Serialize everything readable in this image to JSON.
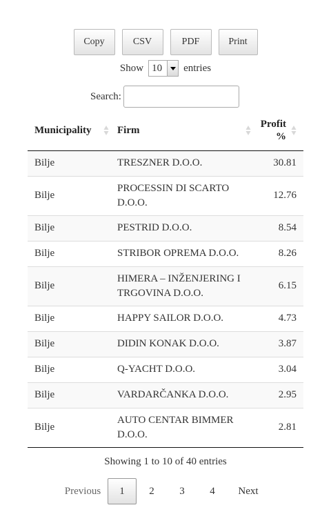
{
  "buttons": {
    "copy": "Copy",
    "csv": "CSV",
    "pdf": "PDF",
    "print": "Print"
  },
  "length": {
    "show_label": "Show",
    "selected": "10",
    "entries_label": "entries"
  },
  "search": {
    "label": "Search:",
    "value": ""
  },
  "table": {
    "headers": [
      "Municipality",
      "Firm",
      "Profit %"
    ],
    "rows": [
      {
        "municipality": "Bilje",
        "firm": "TRESZNER D.O.O.",
        "profit": "30.81"
      },
      {
        "municipality": "Bilje",
        "firm": "PROCESSIN DI SCARTO D.O.O.",
        "profit": "12.76"
      },
      {
        "municipality": "Bilje",
        "firm": "PESTRID D.O.O.",
        "profit": "8.54"
      },
      {
        "municipality": "Bilje",
        "firm": "STRIBOR OPREMA D.O.O.",
        "profit": "8.26"
      },
      {
        "municipality": "Bilje",
        "firm": "HIMERA – INŽENJERING I TRGOVINA D.O.O.",
        "profit": "6.15"
      },
      {
        "municipality": "Bilje",
        "firm": "HAPPY SAILOR D.O.O.",
        "profit": "4.73"
      },
      {
        "municipality": "Bilje",
        "firm": "DIDIN KONAK D.O.O.",
        "profit": "3.87"
      },
      {
        "municipality": "Bilje",
        "firm": "Q-YACHT D.O.O.",
        "profit": "3.04"
      },
      {
        "municipality": "Bilje",
        "firm": "VARDARČANKA D.O.O.",
        "profit": "2.95"
      },
      {
        "municipality": "Bilje",
        "firm": "AUTO CENTAR BIMMER D.O.O.",
        "profit": "2.81"
      }
    ]
  },
  "info": "Showing 1 to 10 of 40 entries",
  "pagination": {
    "previous": "Previous",
    "pages": [
      "1",
      "2",
      "3",
      "4"
    ],
    "current": "1",
    "next": "Next"
  },
  "icons": {
    "sort": "sort-both-icon",
    "dropdown": "dropdown-arrow-icon"
  },
  "colors": {
    "odd_row": "#f9f9f9",
    "even_row": "#ffffff",
    "row_border": "#dddddd",
    "header_border": "#111111",
    "disabled_text": "#666666"
  }
}
